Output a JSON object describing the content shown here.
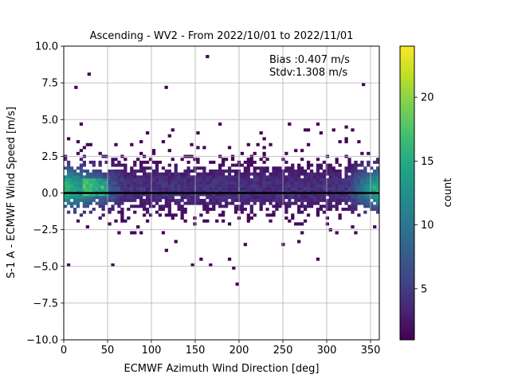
{
  "chart_data": {
    "type": "heatmap",
    "title": "Ascending - WV2 - From 2022/10/01 to 2022/11/01",
    "xlabel": "ECMWF Azimuth Wind Direction [deg]",
    "ylabel": "S-1 A - ECMWF Wind Speed [m/s]",
    "xlim": [
      0,
      360
    ],
    "ylim": [
      -10,
      10
    ],
    "x_ticks": [
      "0",
      "50",
      "100",
      "150",
      "200",
      "250",
      "300",
      "350"
    ],
    "y_ticks": [
      "−10.0",
      "−7.5",
      "−5.0",
      "−2.5",
      "0.0",
      "2.5",
      "5.0",
      "7.5",
      "10.0"
    ],
    "grid": true,
    "colormap": "viridis",
    "colorbar": {
      "label": "count",
      "range": [
        1,
        24
      ],
      "ticks": [
        "5",
        "10",
        "15",
        "20"
      ]
    },
    "bin_size": {
      "x": 3.6,
      "y": 0.2
    },
    "reference_line": {
      "y": 0.0,
      "color": "#000000"
    },
    "annotations": [
      "Bias :0.407 m/s",
      "Stdv:1.308 m/s"
    ],
    "notable_bins": [
      {
        "x": 162,
        "y": 9.3,
        "count": 1
      },
      {
        "x": 27,
        "y": 8.1,
        "count": 1
      },
      {
        "x": 12,
        "y": 7.2,
        "count": 1
      },
      {
        "x": 115,
        "y": 7.2,
        "count": 1
      },
      {
        "x": 340,
        "y": 7.4,
        "count": 1
      },
      {
        "x": 196,
        "y": -6.2,
        "count": 1
      },
      {
        "x": 192,
        "y": -5.1,
        "count": 1
      },
      {
        "x": 145,
        "y": -4.9,
        "count": 1
      },
      {
        "x": 42,
        "y": 0.4,
        "count": 18
      },
      {
        "x": 30,
        "y": 0.6,
        "count": 17
      },
      {
        "x": 20,
        "y": 0.2,
        "count": 15
      },
      {
        "x": 352,
        "y": 0.4,
        "count": 16
      }
    ]
  }
}
